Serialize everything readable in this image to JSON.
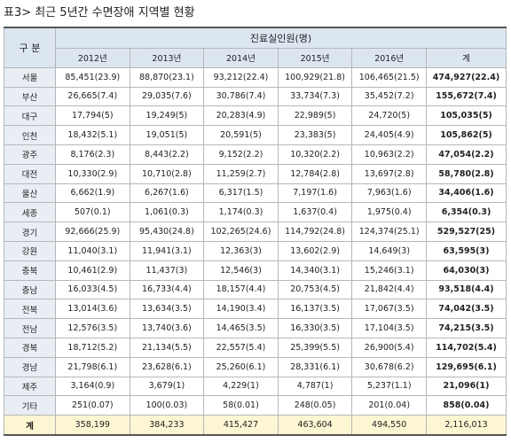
{
  "title": "표3> 최근 5년간 수면장애 지역별 현황",
  "table": {
    "header": {
      "label": "구 분",
      "group": "진료실인원(명)",
      "columns": [
        "2012년",
        "2013년",
        "2014년",
        "2015년",
        "2016년",
        "계"
      ]
    },
    "rows": [
      [
        "서울",
        "85,451(23.9)",
        "88,870(23.1)",
        "93,212(22.4)",
        "100,929(21.8)",
        "106,465(21.5)",
        "474,927(22.4)"
      ],
      [
        "부산",
        "26,665(7.4)",
        "29,035(7.6)",
        "30,786(7.4)",
        "33,734(7.3)",
        "35,452(7.2)",
        "155,672(7.4)"
      ],
      [
        "대구",
        "17,794(5)",
        "19,249(5)",
        "20,283(4.9)",
        "22,989(5)",
        "24,720(5)",
        "105,035(5)"
      ],
      [
        "인천",
        "18,432(5.1)",
        "19,051(5)",
        "20,591(5)",
        "23,383(5)",
        "24,405(4.9)",
        "105,862(5)"
      ],
      [
        "광주",
        "8,176(2.3)",
        "8,443(2.2)",
        "9,152(2.2)",
        "10,320(2.2)",
        "10,963(2.2)",
        "47,054(2.2)"
      ],
      [
        "대전",
        "10,330(2.9)",
        "10,710(2.8)",
        "11,259(2.7)",
        "12,784(2.8)",
        "13,697(2.8)",
        "58,780(2.8)"
      ],
      [
        "울산",
        "6,662(1.9)",
        "6,267(1.6)",
        "6,317(1.5)",
        "7,197(1.6)",
        "7,963(1.6)",
        "34,406(1.6)"
      ],
      [
        "세종",
        "507(0.1)",
        "1,061(0.3)",
        "1,174(0.3)",
        "1,637(0.4)",
        "1,975(0.4)",
        "6,354(0.3)"
      ],
      [
        "경기",
        "92,666(25.9)",
        "95,430(24.8)",
        "102,265(24.6)",
        "114,792(24.8)",
        "124,374(25.1)",
        "529,527(25)"
      ],
      [
        "강원",
        "11,040(3.1)",
        "11,941(3.1)",
        "12,363(3)",
        "13,602(2.9)",
        "14,649(3)",
        "63,595(3)"
      ],
      [
        "충북",
        "10,461(2.9)",
        "11,437(3)",
        "12,546(3)",
        "14,340(3.1)",
        "15,246(3.1)",
        "64,030(3)"
      ],
      [
        "충남",
        "16,033(4.5)",
        "16,733(4.4)",
        "18,157(4.4)",
        "20,753(4.5)",
        "21,842(4.4)",
        "93,518(4.4)"
      ],
      [
        "전북",
        "13,014(3.6)",
        "13,634(3.5)",
        "14,190(3.4)",
        "16,137(3.5)",
        "17,067(3.5)",
        "74,042(3.5)"
      ],
      [
        "전남",
        "12,576(3.5)",
        "13,740(3.6)",
        "14,465(3.5)",
        "16,330(3.5)",
        "17,104(3.5)",
        "74,215(3.5)"
      ],
      [
        "경북",
        "18,712(5.2)",
        "21,134(5.5)",
        "22,557(5.4)",
        "25,399(5.5)",
        "26,900(5.4)",
        "114,702(5.4)"
      ],
      [
        "경남",
        "21,798(6.1)",
        "23,628(6.1)",
        "25,260(6.1)",
        "28,331(6.1)",
        "30,678(6.2)",
        "129,695(6.1)"
      ],
      [
        "제주",
        "3,164(0.9)",
        "3,679(1)",
        "4,229(1)",
        "4,787(1)",
        "5,237(1.1)",
        "21,096(1)"
      ],
      [
        "기타",
        "251(0.07)",
        "100(0.03)",
        "58(0.01)",
        "248(0.05)",
        "201(0.04)",
        "858(0.04)"
      ],
      [
        "계",
        "358,199",
        "384,233",
        "415,427",
        "463,604",
        "494,550",
        "2,116,013"
      ]
    ]
  }
}
